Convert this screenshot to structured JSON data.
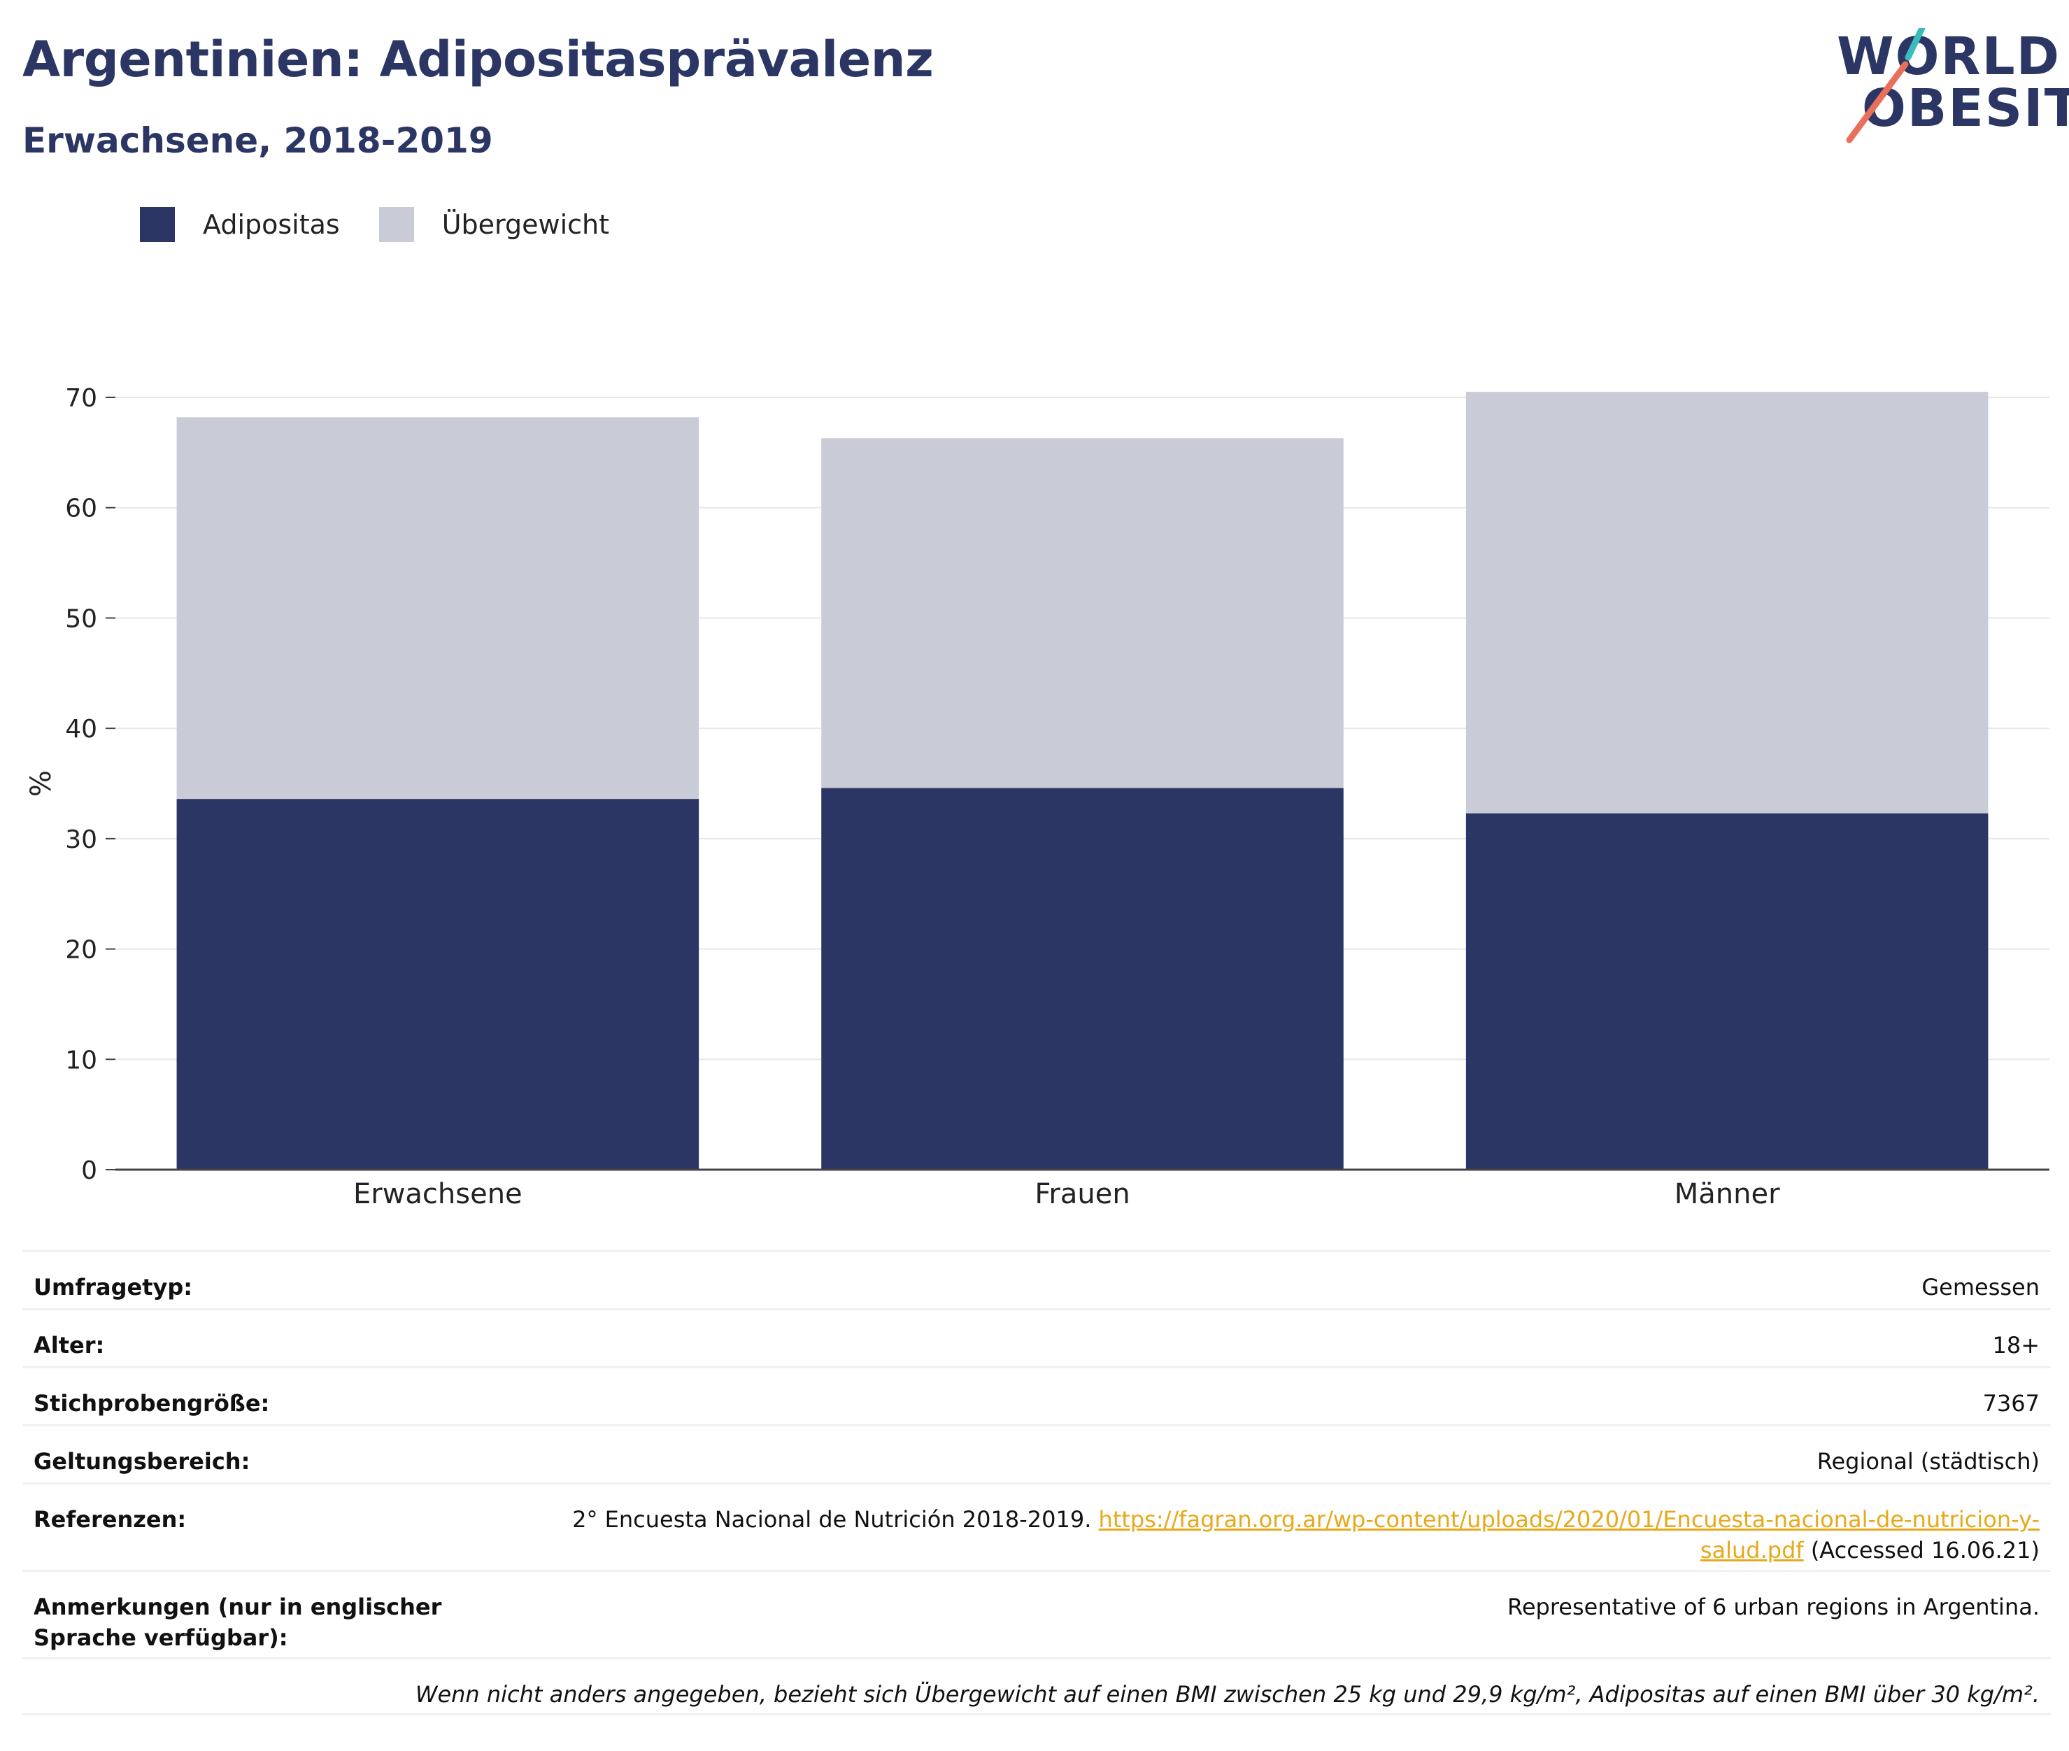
{
  "header": {
    "title": "Argentinien: Adipositasprävalenz",
    "subtitle": "Erwachsene, 2018-2019"
  },
  "logo": {
    "line1": "WORLD",
    "line2": "OBESITY",
    "accent_teal": "#3bbcbc",
    "accent_red": "#e8705a"
  },
  "legend": [
    {
      "label": "Adipositas",
      "color": "#2b3664"
    },
    {
      "label": "Übergewicht",
      "color": "#c9cbd6"
    }
  ],
  "chart_data": {
    "type": "bar",
    "stacked": true,
    "categories": [
      "Erwachsene",
      "Frauen",
      "Männer"
    ],
    "series": [
      {
        "name": "Adipositas",
        "values": [
          33.6,
          34.6,
          32.3
        ],
        "color": "#2b3664"
      },
      {
        "name": "Übergewicht",
        "values": [
          34.6,
          31.7,
          38.2
        ],
        "color": "#c9cbd6"
      }
    ],
    "ylabel": "%",
    "ylim": [
      0,
      70
    ],
    "yticks": [
      0,
      10,
      20,
      30,
      40,
      50,
      60,
      70
    ],
    "grid": true
  },
  "details": {
    "survey_type": {
      "label": "Umfragetyp:",
      "value": "Gemessen"
    },
    "age": {
      "label": "Alter:",
      "value": "18+"
    },
    "sample": {
      "label": "Stichprobengröße:",
      "value": "7367"
    },
    "scope": {
      "label": "Geltungsbereich:",
      "value": "Regional (städtisch)"
    },
    "references": {
      "label": "Referenzen:",
      "text_before": "2° Encuesta Nacional de Nutrición 2018-2019. ",
      "link_part1": "https://fagran.org.ar/wp-content/uploads/2020/01/Encuesta-nacional-de-nutricion-y-",
      "link_part2": "salud.pdf",
      "text_after": " (Accessed 16.06.21)"
    },
    "notes": {
      "label": "Anmerkungen (nur in englischer Sprache verfügbar):",
      "value": "Representative of 6 urban regions in Argentina."
    },
    "footnote": "Wenn nicht anders angegeben, bezieht sich Übergewicht auf einen BMI zwischen 25 kg und 29,9 kg/m², Adipositas auf einen BMI über 30 kg/m²."
  }
}
